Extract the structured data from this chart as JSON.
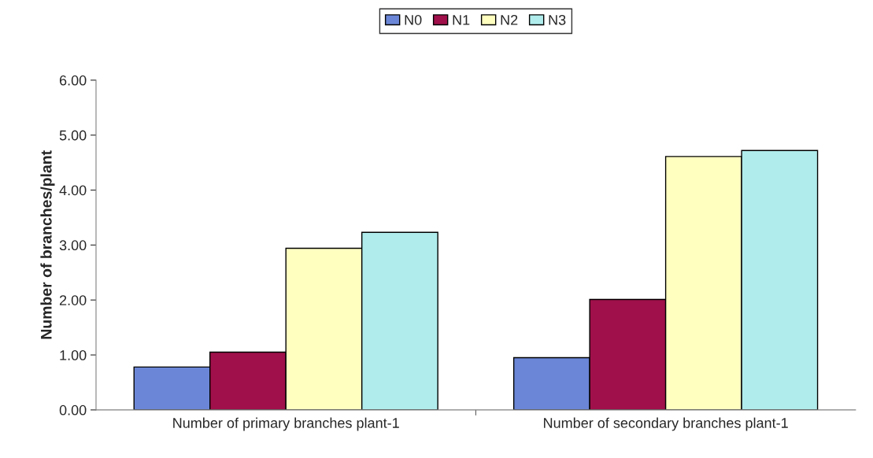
{
  "chart_data": {
    "type": "bar",
    "ylabel": "Number of branches/plant",
    "categories": [
      "Number of primary branches plant-1",
      "Number of secondary branches plant-1"
    ],
    "series": [
      {
        "name": "N0",
        "color": "#6b86d6",
        "values": [
          0.78,
          0.95
        ]
      },
      {
        "name": "N1",
        "color": "#a0104a",
        "values": [
          1.05,
          2.01
        ]
      },
      {
        "name": "N2",
        "color": "#ffffc0",
        "values": [
          2.94,
          4.61
        ]
      },
      {
        "name": "N3",
        "color": "#b0ecec",
        "values": [
          3.23,
          4.72
        ]
      }
    ],
    "ylim": [
      0,
      6
    ],
    "yticks": [
      {
        "value": 0,
        "label": "0.00"
      },
      {
        "value": 1,
        "label": "1.00"
      },
      {
        "value": 2,
        "label": "2.00"
      },
      {
        "value": 3,
        "label": "3.00"
      },
      {
        "value": 4,
        "label": "4.00"
      },
      {
        "value": 5,
        "label": "5.00"
      },
      {
        "value": 6,
        "label": "6.00"
      }
    ],
    "grid": false,
    "legend": "top"
  }
}
